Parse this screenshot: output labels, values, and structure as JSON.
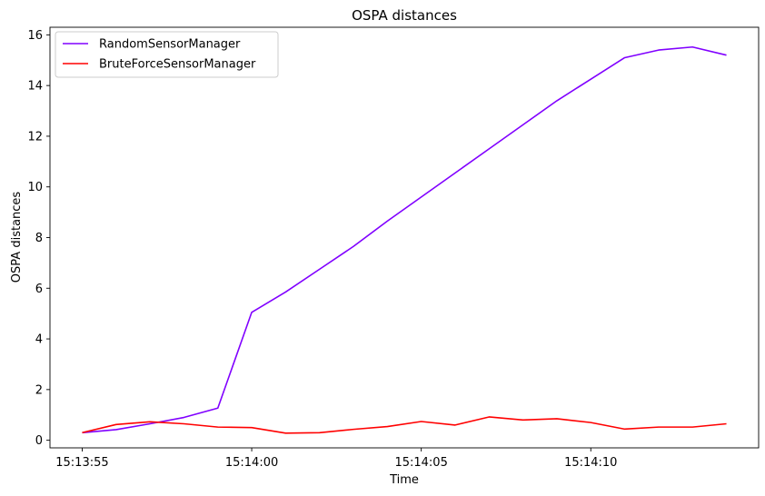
{
  "chart_data": {
    "type": "line",
    "title": "OSPA distances",
    "xlabel": "Time",
    "ylabel": "OSPA distances",
    "x": [
      "15:13:55",
      "15:13:56",
      "15:13:57",
      "15:13:58",
      "15:13:59",
      "15:14:00",
      "15:14:01",
      "15:14:02",
      "15:14:03",
      "15:14:04",
      "15:14:05",
      "15:14:06",
      "15:14:07",
      "15:14:08",
      "15:14:09",
      "15:14:10",
      "15:14:11",
      "15:14:12",
      "15:14:13",
      "15:14:14"
    ],
    "x_ticks": [
      "15:13:55",
      "15:14:00",
      "15:14:05",
      "15:14:10"
    ],
    "ylim": [
      -0.3,
      16.3
    ],
    "y_ticks": [
      0,
      2,
      4,
      6,
      8,
      10,
      12,
      14,
      16
    ],
    "grid": false,
    "legend_position": "top-left",
    "series": [
      {
        "name": "RandomSensorManager",
        "color": "#8000ff",
        "values": [
          0.3,
          0.42,
          0.65,
          0.9,
          1.27,
          5.05,
          5.85,
          6.75,
          7.65,
          8.65,
          9.6,
          10.55,
          11.5,
          12.45,
          13.4,
          14.25,
          15.1,
          15.4,
          15.52,
          15.2
        ]
      },
      {
        "name": "BruteForceSensorManager",
        "color": "#ff0000",
        "values": [
          0.3,
          0.62,
          0.73,
          0.65,
          0.52,
          0.5,
          0.28,
          0.3,
          0.43,
          0.54,
          0.74,
          0.6,
          0.92,
          0.8,
          0.85,
          0.7,
          0.44,
          0.52,
          0.52,
          0.65
        ]
      }
    ]
  }
}
